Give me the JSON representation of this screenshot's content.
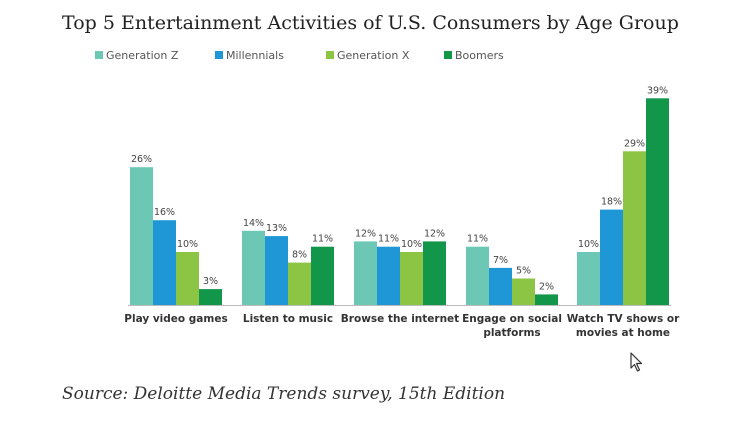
{
  "page": {
    "title": "Top 5 Entertainment Activities of U.S. Consumers by Age Group",
    "source": "Source: Deloitte Media Trends survey, 15th Edition"
  },
  "colors": {
    "generation_z": "#6cc8b4",
    "millennials": "#1f97d6",
    "generation_x": "#8cc443",
    "boomers": "#12964a"
  },
  "chart_data": {
    "type": "bar",
    "title": "Top 5 Entertainment Activities of U.S. Consumers by Age Group",
    "xlabel": "",
    "ylabel": "",
    "ylim": [
      0,
      40
    ],
    "legend_position": "top-left",
    "grid": false,
    "categories": [
      [
        "Play video games"
      ],
      [
        "Listen to music"
      ],
      [
        "Browse the internet"
      ],
      [
        "Engage on social",
        "platforms"
      ],
      [
        "Watch TV shows or",
        "movies at home"
      ]
    ],
    "series": [
      {
        "name": "Generation Z",
        "color": "#6cc8b4",
        "values": [
          26,
          14,
          12,
          11,
          10
        ]
      },
      {
        "name": "Millennials",
        "color": "#1f97d6",
        "values": [
          16,
          13,
          11,
          7,
          18
        ]
      },
      {
        "name": "Generation X",
        "color": "#8cc443",
        "values": [
          10,
          8,
          10,
          5,
          29
        ]
      },
      {
        "name": "Boomers",
        "color": "#12964a",
        "values": [
          3,
          11,
          12,
          2,
          39
        ]
      }
    ],
    "value_suffix": "%"
  }
}
